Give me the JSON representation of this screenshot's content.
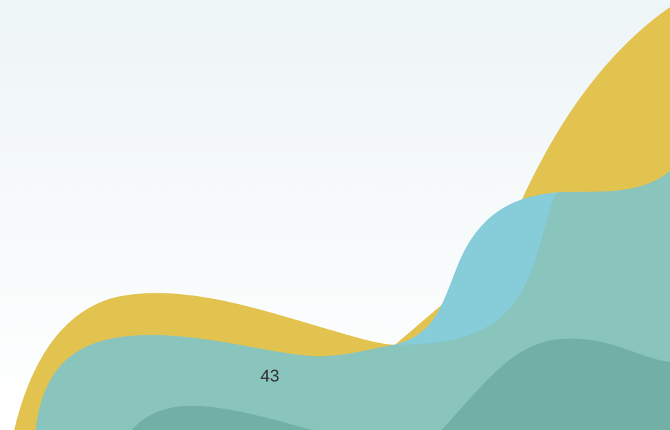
{
  "page_number": "43"
}
